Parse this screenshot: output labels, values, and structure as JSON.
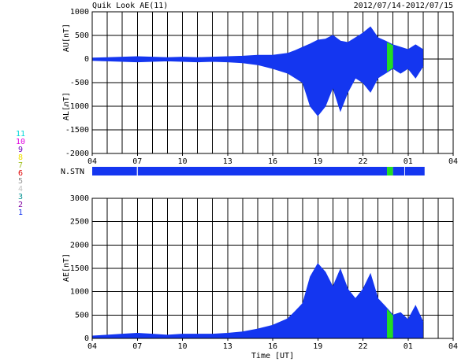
{
  "chart_data": [
    {
      "type": "area",
      "title": "Quik Look AE(11)",
      "subtitle": "2012/07/14-2012/07/15",
      "ylabel": "AU[nT]",
      "ylabel2": "AL[nT]",
      "x": [
        0,
        1,
        2,
        3,
        4,
        5,
        6,
        7,
        8,
        9,
        10,
        11,
        12,
        13,
        13.5,
        14,
        14.5,
        15,
        15.5,
        16,
        16.5,
        17,
        17.5,
        18,
        18.5,
        19,
        19.5,
        20,
        20.5,
        21,
        21.5,
        22
      ],
      "series": [
        {
          "color": "#1436f0",
          "values": [
            20,
            30,
            40,
            50,
            40,
            30,
            40,
            30,
            40,
            50,
            60,
            80,
            80,
            120,
            180,
            250,
            320,
            400,
            420,
            500,
            380,
            350,
            450,
            550,
            680,
            450,
            380,
            300,
            250,
            200,
            300,
            200
          ]
        },
        {
          "color": "#1436f0",
          "values": [
            -30,
            -40,
            -50,
            -60,
            -50,
            -40,
            -50,
            -60,
            -50,
            -60,
            -80,
            -120,
            -200,
            -300,
            -400,
            -500,
            -1000,
            -1200,
            -1000,
            -600,
            -1100,
            -700,
            -400,
            -500,
            -700,
            -400,
            -300,
            -200,
            -300,
            -200,
            -400,
            -150
          ]
        }
      ],
      "xlim": [
        0,
        24
      ],
      "xticks": [
        {
          "value": 0,
          "label": "04"
        },
        {
          "value": 3,
          "label": "07"
        },
        {
          "value": 6,
          "label": "10"
        },
        {
          "value": 9,
          "label": "13"
        },
        {
          "value": 12,
          "label": "16"
        },
        {
          "value": 15,
          "label": "19"
        },
        {
          "value": 18,
          "label": "22"
        },
        {
          "value": 21,
          "label": "01"
        },
        {
          "value": 24,
          "label": "04"
        }
      ],
      "xgrid": [
        0,
        1,
        2,
        3,
        4,
        5,
        6,
        7,
        8,
        9,
        10,
        11,
        12,
        13,
        14,
        15,
        16,
        17,
        18,
        19,
        20,
        21,
        22,
        23,
        24
      ],
      "ylim": [
        -2000,
        1000
      ],
      "yticks": [
        -2000,
        -1500,
        -1000,
        -500,
        0,
        500,
        1000
      ],
      "grid": true
    },
    {
      "type": "strip",
      "label": "N.STN",
      "xlim": [
        0,
        24
      ],
      "segments": [
        {
          "x": [
            0,
            2.97
          ],
          "color": "#1436f0"
        },
        {
          "x": [
            3.03,
            19.6
          ],
          "color": "#1436f0"
        },
        {
          "x": [
            19.6,
            20.0
          ],
          "color": "#22dd22"
        },
        {
          "x": [
            20.0,
            20.75
          ],
          "color": "#1436f0"
        },
        {
          "x": [
            20.8,
            22.1
          ],
          "color": "#1436f0"
        }
      ],
      "legend": [
        {
          "label": "11",
          "color": "#00d8d8"
        },
        {
          "label": "10",
          "color": "#e000e0"
        },
        {
          "label": "9",
          "color": "#7000c0"
        },
        {
          "label": "8",
          "color": "#f0e000"
        },
        {
          "label": "7",
          "color": "#a0c020"
        },
        {
          "label": "6",
          "color": "#e00000"
        },
        {
          "label": "5",
          "color": "#909090"
        },
        {
          "label": "4",
          "color": "#c0c0c0"
        },
        {
          "label": "3",
          "color": "#009090"
        },
        {
          "label": "2",
          "color": "#8000a0"
        },
        {
          "label": "1",
          "color": "#1436f0"
        }
      ]
    },
    {
      "type": "area",
      "ylabel": "AE[nT]",
      "xlabel": "Time [UT]",
      "x": [
        0,
        1,
        2,
        3,
        4,
        5,
        6,
        7,
        8,
        9,
        10,
        11,
        12,
        13,
        13.5,
        14,
        14.5,
        15,
        15.5,
        16,
        16.5,
        17,
        17.5,
        18,
        18.5,
        19,
        19.5,
        20,
        20.5,
        21,
        21.5,
        22
      ],
      "series": [
        {
          "color": "#1436f0",
          "values": [
            50,
            70,
            90,
            110,
            90,
            70,
            90,
            90,
            90,
            110,
            140,
            200,
            280,
            420,
            580,
            750,
            1320,
            1600,
            1420,
            1100,
            1480,
            1050,
            850,
            1050,
            1380,
            850,
            680,
            500,
            550,
            400,
            700,
            350
          ]
        }
      ],
      "xlim": [
        0,
        24
      ],
      "xticks": [
        {
          "value": 0,
          "label": "04"
        },
        {
          "value": 3,
          "label": "07"
        },
        {
          "value": 6,
          "label": "10"
        },
        {
          "value": 9,
          "label": "13"
        },
        {
          "value": 12,
          "label": "16"
        },
        {
          "value": 15,
          "label": "19"
        },
        {
          "value": 18,
          "label": "22"
        },
        {
          "value": 21,
          "label": "01"
        },
        {
          "value": 24,
          "label": "04"
        }
      ],
      "xgrid": [
        0,
        1,
        2,
        3,
        4,
        5,
        6,
        7,
        8,
        9,
        10,
        11,
        12,
        13,
        14,
        15,
        16,
        17,
        18,
        19,
        20,
        21,
        22,
        23,
        24
      ],
      "ylim": [
        0,
        3000
      ],
      "yticks": [
        0,
        500,
        1000,
        1500,
        2000,
        2500,
        3000
      ],
      "grid": true
    }
  ]
}
